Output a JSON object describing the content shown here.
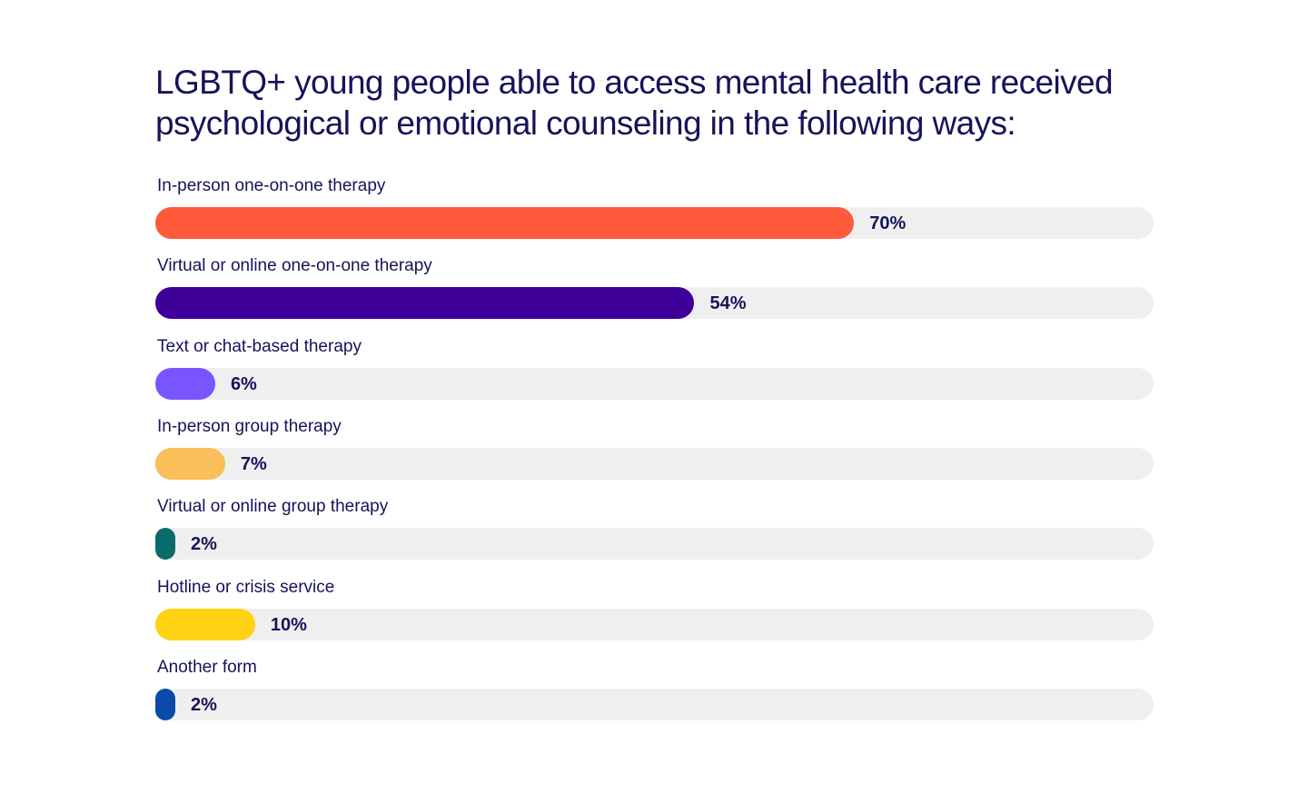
{
  "chart_data": {
    "type": "bar",
    "orientation": "horizontal",
    "title": "LGBTQ+ young people able to access mental health care received psychological or emotional counseling in the following ways:",
    "categories": [
      "In-person one-on-one therapy",
      "Virtual or online one-on-one therapy",
      "Text or chat-based therapy",
      "In-person group therapy",
      "Virtual or online group therapy",
      "Hotline or crisis service",
      "Another form"
    ],
    "values": [
      70,
      54,
      6,
      7,
      2,
      10,
      2
    ],
    "value_labels": [
      "70%",
      "54%",
      "6%",
      "7%",
      "2%",
      "10%",
      "2%"
    ],
    "colors": [
      "#ff5a3c",
      "#3f0099",
      "#7955ff",
      "#f8bf5a",
      "#0a6b6b",
      "#ffd214",
      "#0a4aa8"
    ],
    "track_color": "#efefef",
    "xlim": [
      0,
      100
    ],
    "grid": false,
    "legend": "none"
  }
}
